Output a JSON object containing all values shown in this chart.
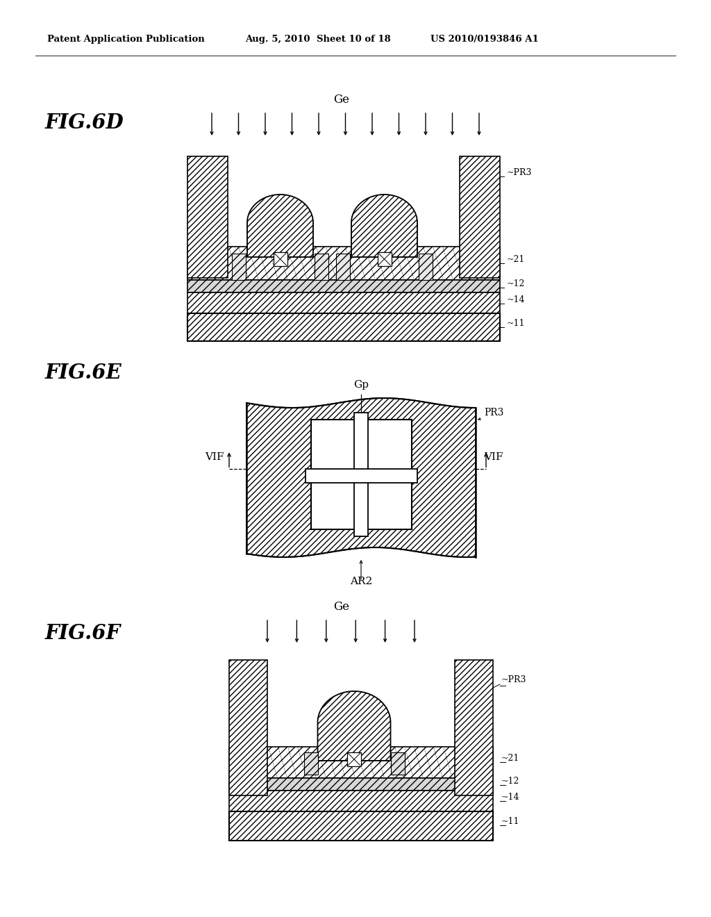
{
  "bg": "#ffffff",
  "header_left": "Patent Application Publication",
  "header_date": "Aug. 5, 2010",
  "header_sheet": "Sheet 10 of 18",
  "header_patent": "US 2010/0193846 A1"
}
